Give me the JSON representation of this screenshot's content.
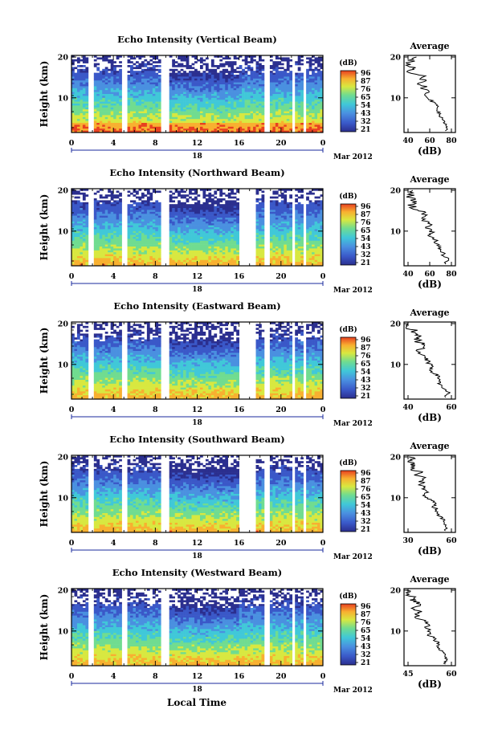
{
  "xlabel": "Local Time",
  "colorbar_unit": "(dB)",
  "colorbar_ticks": [
    "96",
    "87",
    "76",
    "65",
    "54",
    "43",
    "32",
    "21"
  ],
  "x_ticks": [
    "0",
    "4",
    "8",
    "12",
    "16",
    "20",
    "0"
  ],
  "date_day": "18",
  "date_month_year": "Mar 2012",
  "avg_title": "Average",
  "avg_xlabel": "(dB)",
  "height_ticks": [
    "20",
    "10"
  ],
  "colors": {
    "colormap": [
      "#2b2f8f",
      "#3a58c8",
      "#4a90e0",
      "#40c8d8",
      "#70dc90",
      "#d8e840",
      "#f8b030",
      "#e84020"
    ],
    "axis": "#000000",
    "date_axis": "#1a2a9c"
  },
  "chart_data": [
    {
      "type": "heatmap",
      "title": "Echo Intensity (Vertical Beam)",
      "xlabel": "Local Time",
      "ylabel": "Height (km)",
      "xlim": [
        0,
        24
      ],
      "ylim": [
        1.5,
        20
      ],
      "clim": [
        21,
        96
      ],
      "gaps_hours": [
        [
          1.5,
          2.0
        ],
        [
          4.7,
          5.3
        ],
        [
          8.5,
          9.3
        ],
        [
          17.5,
          17.7
        ],
        [
          18.4,
          18.8
        ],
        [
          21.0,
          21.4
        ],
        [
          22.2,
          22.4
        ]
      ],
      "average": {
        "title": "Average",
        "xlabel": "(dB)",
        "xlim": [
          35,
          92
        ],
        "xticks": [
          "40",
          "60",
          "80"
        ],
        "ylim": [
          1.5,
          20
        ]
      }
    },
    {
      "type": "heatmap",
      "title": "Echo Intensity (Northward Beam)",
      "xlabel": "Local Time",
      "ylabel": "Height (km)",
      "xlim": [
        0,
        24
      ],
      "ylim": [
        1.5,
        20
      ],
      "clim": [
        21,
        96
      ],
      "gaps_hours": [
        [
          1.5,
          2.0
        ],
        [
          4.7,
          5.3
        ],
        [
          8.5,
          9.3
        ],
        [
          16.0,
          17.7
        ],
        [
          18.4,
          18.8
        ],
        [
          21.0,
          21.4
        ],
        [
          22.2,
          22.4
        ]
      ],
      "average": {
        "title": "Average",
        "xlabel": "(dB)",
        "xlim": [
          30,
          82
        ],
        "xticks": [
          "40",
          "60",
          "80"
        ],
        "ylim": [
          1.5,
          20
        ]
      }
    },
    {
      "type": "heatmap",
      "title": "Echo Intensity (Eastward Beam)",
      "xlabel": "Local Time",
      "ylabel": "Height (km)",
      "xlim": [
        0,
        24
      ],
      "ylim": [
        1.5,
        20
      ],
      "clim": [
        21,
        96
      ],
      "gaps_hours": [
        [
          1.5,
          2.0
        ],
        [
          4.7,
          5.3
        ],
        [
          8.5,
          9.3
        ],
        [
          16.0,
          17.5
        ],
        [
          18.4,
          18.8
        ],
        [
          21.0,
          21.4
        ],
        [
          22.2,
          22.4
        ]
      ],
      "average": {
        "title": "Average",
        "xlabel": "(dB)",
        "xlim": [
          30,
          82
        ],
        "xticks": [
          "40",
          "60"
        ],
        "ylim": [
          1.5,
          20
        ]
      }
    },
    {
      "type": "heatmap",
      "title": "Echo Intensity (Southward Beam)",
      "xlabel": "Local Time",
      "ylabel": "Height (km)",
      "xlim": [
        0,
        24
      ],
      "ylim": [
        1.5,
        20
      ],
      "clim": [
        21,
        96
      ],
      "gaps_hours": [
        [
          1.5,
          2.0
        ],
        [
          4.7,
          5.3
        ],
        [
          8.5,
          9.3
        ],
        [
          16.0,
          17.5
        ],
        [
          18.4,
          18.8
        ],
        [
          21.0,
          21.4
        ],
        [
          22.2,
          22.4
        ]
      ],
      "average": {
        "title": "Average",
        "xlabel": "(dB)",
        "xlim": [
          30,
          60
        ],
        "xticks": [
          "30",
          "60"
        ],
        "ylim": [
          1.5,
          20
        ]
      }
    },
    {
      "type": "heatmap",
      "title": "Echo Intensity (Westward Beam)",
      "xlabel": "Local Time",
      "ylabel": "Height (km)",
      "xlim": [
        0,
        24
      ],
      "ylim": [
        1.5,
        20
      ],
      "clim": [
        21,
        96
      ],
      "gaps_hours": [
        [
          1.5,
          2.0
        ],
        [
          4.7,
          5.3
        ],
        [
          8.5,
          9.3
        ],
        [
          17.5,
          17.7
        ],
        [
          18.4,
          18.8
        ],
        [
          21.0,
          21.4
        ],
        [
          22.2,
          22.4
        ]
      ],
      "average": {
        "title": "Average",
        "xlabel": "(dB)",
        "xlim": [
          35,
          75
        ],
        "xticks": [
          "45",
          "60"
        ],
        "ylim": [
          1.5,
          20
        ]
      }
    }
  ]
}
